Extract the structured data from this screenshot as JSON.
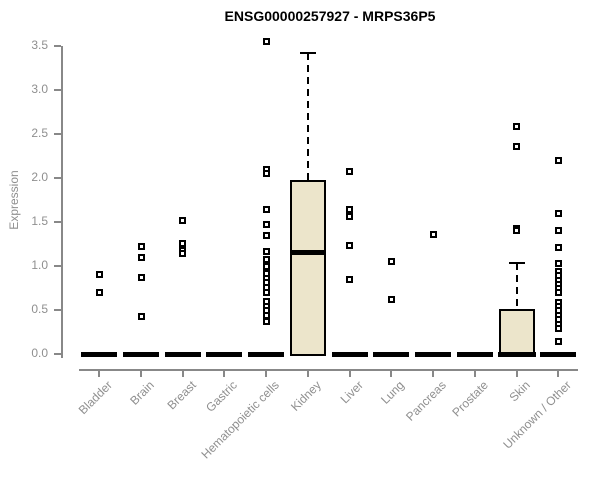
{
  "chart_data": {
    "type": "boxplot",
    "title": "ENSG00000257927 - MRPS36P5",
    "ylabel": "Expression",
    "xlabel": "",
    "ylim": [
      0,
      3.5
    ],
    "yticks": [
      "0.0",
      "0.5",
      "1.0",
      "1.5",
      "2.0",
      "2.5",
      "3.0",
      "3.5"
    ],
    "grid": false,
    "legend": "none",
    "colors": {
      "box_fill": "#ECE5CB",
      "box_stroke": "#000000",
      "axis": "#888888",
      "tick_text": "#8f8f8f",
      "title_text": "#000000"
    },
    "categories": [
      {
        "label": "Bladder",
        "q1": 0,
        "median": 0,
        "q3": 0,
        "whisker_low": 0,
        "whisker_high": 0,
        "outliers": [
          0.9,
          0.7
        ]
      },
      {
        "label": "Brain",
        "q1": 0,
        "median": 0,
        "q3": 0,
        "whisker_low": 0,
        "whisker_high": 0,
        "outliers": [
          1.22,
          1.1,
          0.87,
          0.43
        ]
      },
      {
        "label": "Breast",
        "q1": 0,
        "median": 0,
        "q3": 0,
        "whisker_low": 0,
        "whisker_high": 0,
        "outliers": [
          1.52,
          1.26,
          1.18,
          1.14
        ]
      },
      {
        "label": "Gastric",
        "q1": 0,
        "median": 0,
        "q3": 0,
        "whisker_low": 0,
        "whisker_high": 0,
        "outliers": []
      },
      {
        "label": "Hematopoietic cells",
        "q1": 0,
        "median": 0,
        "q3": 0,
        "whisker_low": 0,
        "whisker_high": 0,
        "outliers": [
          3.55,
          2.1,
          2.05,
          1.64,
          1.47,
          1.35,
          1.16,
          1.07,
          1.0,
          0.92,
          0.86,
          0.81,
          0.76,
          0.7,
          0.6,
          0.54,
          0.49,
          0.44,
          0.37
        ]
      },
      {
        "label": "Kidney",
        "q1": 0,
        "median": 1.15,
        "q3": 1.98,
        "whisker_low": 0,
        "whisker_high": 3.42,
        "outliers": []
      },
      {
        "label": "Liver",
        "q1": 0,
        "median": 0,
        "q3": 0,
        "whisker_low": 0,
        "whisker_high": 0,
        "outliers": [
          2.07,
          1.64,
          1.56,
          1.23,
          0.85
        ]
      },
      {
        "label": "Lung",
        "q1": 0,
        "median": 0,
        "q3": 0,
        "whisker_low": 0,
        "whisker_high": 0,
        "outliers": [
          1.05,
          0.62
        ]
      },
      {
        "label": "Pancreas",
        "q1": 0,
        "median": 0,
        "q3": 0,
        "whisker_low": 0,
        "whisker_high": 0,
        "outliers": [
          1.36
        ]
      },
      {
        "label": "Prostate",
        "q1": 0,
        "median": 0,
        "q3": 0,
        "whisker_low": 0,
        "whisker_high": 0,
        "outliers": []
      },
      {
        "label": "Skin",
        "q1": 0,
        "median": 0,
        "q3": 0.51,
        "whisker_low": 0,
        "whisker_high": 1.03,
        "outliers": [
          2.58,
          2.36,
          1.43,
          1.4
        ]
      },
      {
        "label": "Unknown / Other",
        "q1": 0,
        "median": 0,
        "q3": 0,
        "whisker_low": 0,
        "whisker_high": 0,
        "outliers": [
          2.2,
          1.6,
          1.4,
          1.21,
          1.03,
          0.94,
          0.89,
          0.84,
          0.79,
          0.74,
          0.7,
          0.59,
          0.54,
          0.49,
          0.44,
          0.39,
          0.34,
          0.29,
          0.14
        ]
      }
    ]
  }
}
